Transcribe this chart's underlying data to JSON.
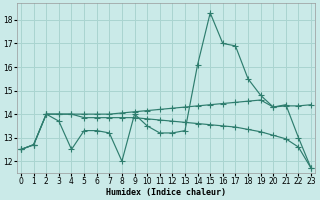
{
  "xlabel": "Humidex (Indice chaleur)",
  "x": [
    0,
    1,
    2,
    3,
    4,
    5,
    6,
    7,
    8,
    9,
    10,
    11,
    12,
    13,
    14,
    15,
    16,
    17,
    18,
    19,
    20,
    21,
    22,
    23
  ],
  "line1": [
    12.5,
    12.7,
    14.0,
    13.7,
    12.5,
    13.3,
    13.3,
    13.2,
    12.0,
    14.0,
    13.5,
    13.2,
    13.2,
    13.3,
    16.1,
    18.3,
    17.0,
    16.9,
    15.5,
    14.8,
    14.3,
    14.4,
    13.0,
    11.7
  ],
  "line2": [
    12.5,
    12.7,
    14.0,
    14.0,
    14.0,
    14.0,
    14.0,
    14.0,
    14.05,
    14.1,
    14.15,
    14.2,
    14.25,
    14.3,
    14.35,
    14.4,
    14.45,
    14.5,
    14.55,
    14.6,
    14.3,
    14.35,
    14.35,
    14.4
  ],
  "line3": [
    12.5,
    12.7,
    14.0,
    14.0,
    14.0,
    13.85,
    13.85,
    13.85,
    13.85,
    13.85,
    13.8,
    13.75,
    13.7,
    13.65,
    13.6,
    13.55,
    13.5,
    13.45,
    13.35,
    13.25,
    13.1,
    12.95,
    12.6,
    11.7
  ],
  "line_color": "#2e7d6e",
  "bg_color": "#caeae8",
  "grid_color": "#aad4d0",
  "yticks": [
    12,
    13,
    14,
    15,
    16,
    17,
    18
  ],
  "xticks": [
    0,
    1,
    2,
    3,
    4,
    5,
    6,
    7,
    8,
    9,
    10,
    11,
    12,
    13,
    14,
    15,
    16,
    17,
    18,
    19,
    20,
    21,
    22,
    23
  ]
}
